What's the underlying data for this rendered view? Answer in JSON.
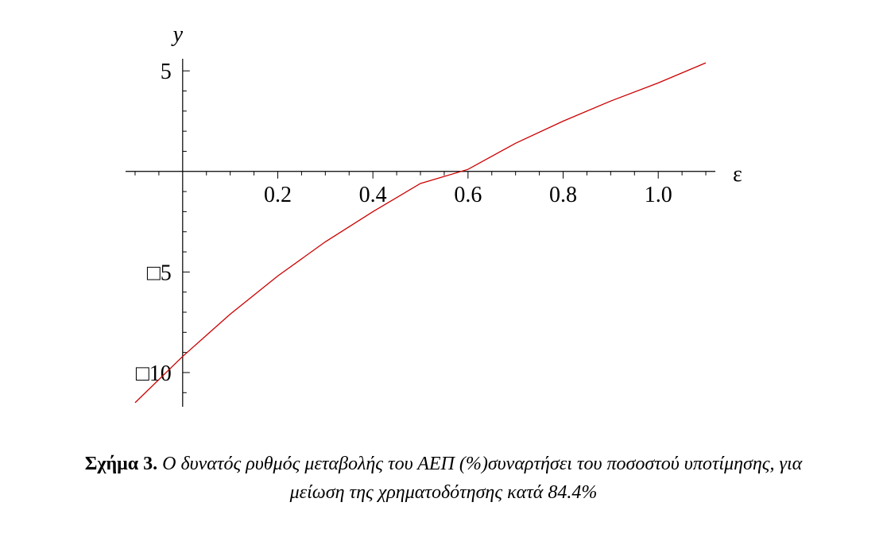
{
  "chart_data": {
    "type": "line",
    "xlabel": "ε",
    "ylabel": "y",
    "xlim": [
      -0.12,
      1.12
    ],
    "ylim": [
      -11.7,
      5.6
    ],
    "x_ticks": [
      0.2,
      0.4,
      0.6,
      0.8,
      1.0
    ],
    "x_tick_labels": [
      "0.2",
      "0.4",
      "0.6",
      "0.8",
      "1.0"
    ],
    "x_minor_step": 0.05,
    "y_ticks": [
      5,
      -5,
      -10
    ],
    "y_tick_labels": [
      "5",
      "□5",
      "□10"
    ],
    "y_minor_step": 1,
    "grid": false,
    "series": [
      {
        "color": "#cc0000",
        "x": [
          -0.1,
          0.0,
          0.1,
          0.2,
          0.3,
          0.4,
          0.5,
          0.6,
          0.7,
          0.8,
          0.9,
          1.0,
          1.1
        ],
        "y": [
          -11.5,
          -9.2,
          -7.1,
          -5.2,
          -3.5,
          -2.0,
          -0.6,
          0.1,
          1.4,
          2.5,
          3.5,
          4.4,
          5.4
        ]
      }
    ]
  },
  "caption": {
    "lead": "Σχήμα 3",
    "punct": ".",
    "line1": "Ο δυνατός ρυθμός μεταβολής του ΑΕΠ (%)συναρτήσει του ποσοστού υποτίμησης, για",
    "line2": "μείωση της χρηματοδότησης κατά 84.4%"
  }
}
